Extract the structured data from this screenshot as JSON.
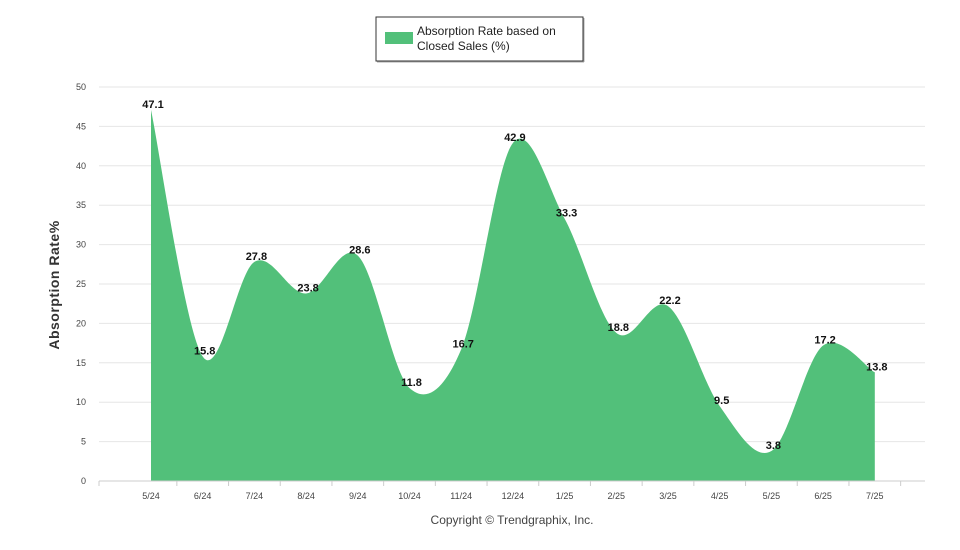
{
  "chart_data": {
    "type": "area",
    "categories": [
      "5/24",
      "6/24",
      "7/24",
      "8/24",
      "9/24",
      "10/24",
      "11/24",
      "12/24",
      "1/25",
      "2/25",
      "3/25",
      "4/25",
      "5/25",
      "6/25",
      "7/25"
    ],
    "series": [
      {
        "name": "Absorption Rate based on Closed Sales (%)",
        "values": [
          47.1,
          15.8,
          27.8,
          23.8,
          28.6,
          11.8,
          16.7,
          42.9,
          33.3,
          18.8,
          22.2,
          9.5,
          3.8,
          17.2,
          13.8
        ]
      }
    ],
    "legend": {
      "line1": "Absorption Rate based on",
      "line2": "Closed Sales (%)",
      "position": "top-center"
    },
    "ylabel": "Absorption Rate%",
    "xlabel": "",
    "ylim": [
      0,
      50
    ],
    "yticks": [
      0,
      5,
      10,
      15,
      20,
      25,
      30,
      35,
      40,
      45,
      50
    ],
    "grid": true,
    "colors": {
      "fill": "#52c07a",
      "grid": "#e6e6e6",
      "axis": "#cccccc"
    }
  },
  "footer": {
    "copyright": "Copyright © Trendgraphix, Inc."
  }
}
